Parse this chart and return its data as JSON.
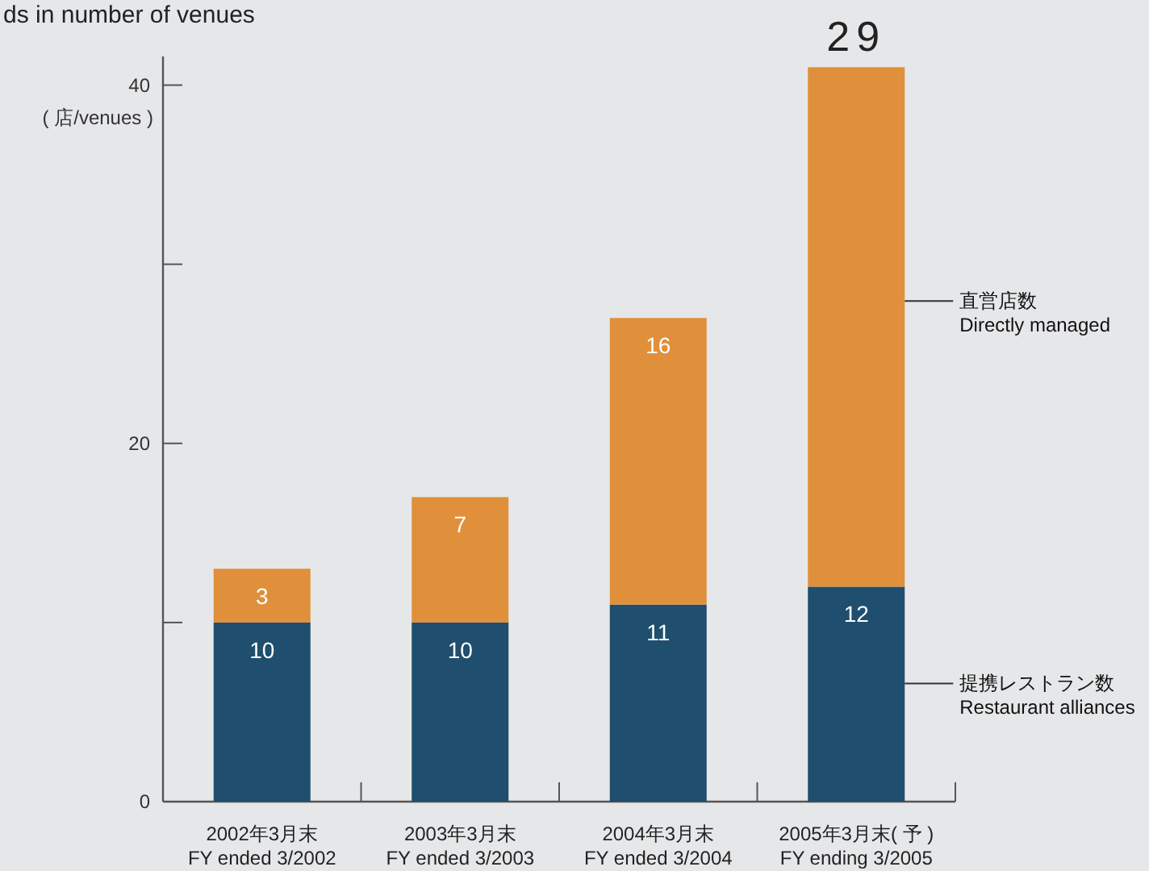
{
  "chart_data": {
    "type": "bar",
    "stacked": true,
    "title": "ds in number of venues",
    "ylabel": "( 店/venues )",
    "categories": [
      "2002年3月末\nFY ended 3/2002",
      "2003年3月末\nFY ended 3/2003",
      "2004年3月末\nFY ended 3/2004",
      "2005年3月末( 予 )\nFY ending 3/2005"
    ],
    "series": [
      {
        "name": "提携レストラン数\nRestaurant alliances",
        "color": "#1f4e6e",
        "values": [
          10,
          10,
          11,
          12
        ]
      },
      {
        "name": "直営店数\nDirectly managed",
        "color": "#e0903a",
        "values": [
          3,
          7,
          16,
          29
        ]
      }
    ],
    "ylim": [
      0,
      41.6
    ],
    "yticks": [
      0,
      {
        "value": 10,
        "label": null
      },
      20,
      {
        "value": 30,
        "label": null
      },
      40
    ],
    "data_labels": true,
    "legend": "right"
  }
}
